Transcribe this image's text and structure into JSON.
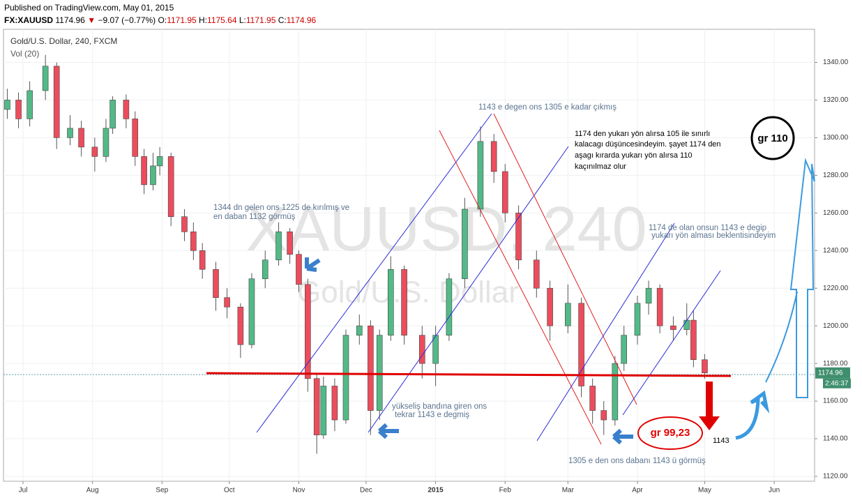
{
  "header": {
    "published": "Published on TradingView.com, May 01, 2015",
    "symbol": "FX:XAUUSD",
    "last": "1174.96",
    "change": "−9.07 (−0.77%)",
    "o_label": "O:",
    "o": "1171.95",
    "h_label": "H:",
    "h": "1175.64",
    "l_label": "L:",
    "l": "1171.95",
    "c_label": "C:",
    "c": "1174.96"
  },
  "chart_data": {
    "type": "candlestick",
    "title": "Gold/U.S. Dollar, 240, FXCM",
    "subtitle": "Vol (20)",
    "watermark": "XAUUSD, 240",
    "watermark_sub": "Gold/U.S. Dollar",
    "x": [
      -7,
      -2,
      3,
      10,
      15,
      21,
      26,
      32,
      37,
      40,
      46,
      50,
      54,
      58,
      61,
      66,
      72,
      76,
      80,
      86,
      91,
      97,
      102,
      108,
      114,
      119,
      123,
      127,
      131,
      134,
      139,
      144,
      150,
      155,
      159,
      164,
      170,
      178,
      184,
      190,
      197,
      204,
      210,
      215,
      221,
      229,
      235,
      243,
      249,
      254,
      259,
      264,
      268,
      274,
      279,
      284,
      290,
      296,
      299,
      304
    ],
    "open": [
      1315,
      1320,
      1310,
      1325,
      1338,
      1300,
      1305,
      1295,
      1290,
      1305,
      1320,
      1310,
      1290,
      1275,
      1285,
      1290,
      1258,
      1250,
      1240,
      1230,
      1215,
      1210,
      1190,
      1225,
      1235,
      1250,
      1238,
      1222,
      1172,
      1142,
      1168,
      1150,
      1195,
      1200,
      1155,
      1195,
      1230,
      1195,
      1180,
      1195,
      1225,
      1262,
      1298,
      1282,
      1260,
      1235,
      1220,
      1200,
      1212,
      1168,
      1155,
      1150,
      1180,
      1195,
      1212,
      1220,
      1200,
      1198,
      1203,
      1182
    ],
    "high": [
      1326,
      1324,
      1330,
      1344,
      1340,
      1312,
      1309,
      1300,
      1310,
      1322,
      1323,
      1314,
      1294,
      1292,
      1295,
      1292,
      1262,
      1255,
      1244,
      1234,
      1220,
      1212,
      1228,
      1240,
      1255,
      1252,
      1240,
      1225,
      1175,
      1173,
      1172,
      1198,
      1206,
      1203,
      1198,
      1237,
      1232,
      1200,
      1200,
      1228,
      1268,
      1306,
      1302,
      1286,
      1264,
      1240,
      1224,
      1222,
      1215,
      1172,
      1160,
      1184,
      1200,
      1216,
      1224,
      1222,
      1205,
      1212,
      1208,
      1185
    ],
    "low": [
      1310,
      1305,
      1306,
      1320,
      1294,
      1296,
      1290,
      1282,
      1287,
      1302,
      1305,
      1285,
      1270,
      1272,
      1280,
      1253,
      1245,
      1235,
      1225,
      1208,
      1204,
      1183,
      1188,
      1220,
      1232,
      1233,
      1218,
      1165,
      1132,
      1140,
      1144,
      1148,
      1190,
      1142,
      1150,
      1192,
      1190,
      1172,
      1168,
      1192,
      1220,
      1258,
      1276,
      1255,
      1230,
      1215,
      1192,
      1196,
      1162,
      1148,
      1142,
      1147,
      1176,
      1190,
      1206,
      1196,
      1192,
      1195,
      1178,
      1171.95
    ],
    "close": [
      1320,
      1310,
      1325,
      1338,
      1300,
      1305,
      1295,
      1290,
      1305,
      1320,
      1310,
      1290,
      1275,
      1285,
      1290,
      1258,
      1250,
      1240,
      1230,
      1215,
      1210,
      1190,
      1225,
      1235,
      1250,
      1238,
      1222,
      1172,
      1142,
      1168,
      1150,
      1195,
      1200,
      1155,
      1195,
      1230,
      1195,
      1180,
      1195,
      1225,
      1262,
      1298,
      1282,
      1260,
      1235,
      1220,
      1200,
      1212,
      1168,
      1155,
      1150,
      1180,
      1195,
      1212,
      1220,
      1200,
      1198,
      1203,
      1182,
      1174.96
    ],
    "up_color": "#53b987",
    "down_color": "#eb4d5c",
    "xlim": [
      -8.7,
      353
    ],
    "xticks": [
      {
        "value": 0,
        "label": "Jul"
      },
      {
        "value": 31,
        "label": "Aug"
      },
      {
        "value": 62,
        "label": "Sep"
      },
      {
        "value": 92,
        "label": "Oct"
      },
      {
        "value": 123,
        "label": "Nov"
      },
      {
        "value": 153,
        "label": "Dec"
      },
      {
        "value": 184,
        "label": "2015"
      },
      {
        "value": 215,
        "label": "Feb"
      },
      {
        "value": 243,
        "label": "Mar"
      },
      {
        "value": 274,
        "label": "Apr"
      },
      {
        "value": 304,
        "label": "May"
      },
      {
        "value": 335,
        "label": "Jun"
      }
    ],
    "ylim": [
      1117.4,
      1357.6
    ],
    "yticks": [
      {
        "value": 1120,
        "label": "1120.00"
      },
      {
        "value": 1140,
        "label": "1140.00"
      },
      {
        "value": 1160,
        "label": "1160.00"
      },
      {
        "value": 1180,
        "label": "1180.00"
      },
      {
        "value": 1200,
        "label": "1200.00"
      },
      {
        "value": 1220,
        "label": "1220.00"
      },
      {
        "value": 1240,
        "label": "1240.00"
      },
      {
        "value": 1260,
        "label": "1260.00"
      },
      {
        "value": 1280,
        "label": "1280.00"
      },
      {
        "value": 1300,
        "label": "1300.00"
      },
      {
        "value": 1320,
        "label": "1320.00"
      },
      {
        "value": 1340,
        "label": "1340.00"
      }
    ],
    "grid": true,
    "last_price": {
      "value": 1174.96,
      "label": "1174.96"
    },
    "countdown": "2:46:37",
    "annotations": {
      "a1": "1143 e degen ons 1305 e kadar çıkmış",
      "a2_1": "1174 den yukarı yön alırsa 105 ile sınırlı",
      "a2_2": "kalacagı düşüncesindeyim. şayet 1174 den",
      "a2_3": "aşagı kırarda yukarı yön alırsa 110",
      "a2_4": "kaçınılmaz olur",
      "a3_1": "1344 dn gelen ons 1225 de kırılmış ve",
      "a3_2": "en daban 1132 görmüş",
      "a4_1": "1174 de olan onsun 1143 e degip",
      "a4_2": "yukarı yön alması beklentisindeyim",
      "a5_1": "yükseliş bandına giren ons",
      "a5_2": "tekrar 1143 e degmiş",
      "a6": "1305 e den ons dabanı 1143 ü görmüş",
      "gr110": "gr 110",
      "gr99": "gr 99,23",
      "t1143": "1143"
    }
  }
}
